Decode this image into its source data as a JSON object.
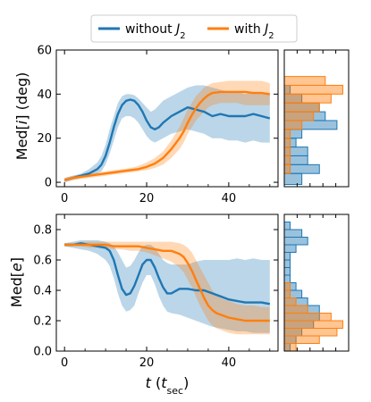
{
  "chart_data": [
    {
      "type": "line",
      "ylabel_parts": [
        "Med[",
        "i",
        "] (deg)"
      ],
      "xlim": [
        -2,
        52
      ],
      "ylim": [
        -2,
        60
      ],
      "xticks": [
        0,
        20,
        40
      ],
      "yticks": [
        0,
        20,
        40,
        60
      ],
      "series": [
        {
          "name": "without J2",
          "color": "#1f77b4",
          "x": [
            0,
            2,
            4,
            6,
            8,
            9,
            10,
            11,
            12,
            13,
            14,
            15,
            16,
            17,
            18,
            19,
            20,
            21,
            22,
            23,
            24,
            26,
            28,
            30,
            32,
            34,
            36,
            38,
            40,
            42,
            44,
            46,
            48,
            50
          ],
          "median": [
            1,
            2,
            3,
            4,
            6,
            8,
            12,
            18,
            25,
            31,
            35,
            37,
            37.5,
            37,
            35,
            32,
            28,
            25,
            24,
            25,
            27,
            30,
            32,
            34,
            33,
            32,
            30,
            31,
            30,
            30,
            30,
            31,
            30,
            29
          ],
          "lower": [
            0,
            1,
            2,
            3,
            4,
            5,
            8,
            13,
            19,
            25,
            29,
            30,
            30,
            29,
            27,
            24,
            21,
            19,
            18,
            19,
            20,
            22,
            23,
            24,
            23,
            22,
            20,
            20,
            19,
            19,
            18,
            19,
            18,
            18
          ],
          "upper": [
            2,
            3,
            4,
            6,
            9,
            12,
            17,
            24,
            30,
            36,
            39,
            40,
            40,
            39.5,
            38,
            36,
            34,
            32,
            33,
            35,
            37,
            39,
            41,
            43,
            44,
            44,
            43,
            42,
            41,
            41,
            40,
            41,
            40,
            40
          ]
        },
        {
          "name": "with J2",
          "color": "#ff7f0e",
          "x": [
            0,
            2,
            4,
            6,
            8,
            10,
            12,
            14,
            16,
            18,
            20,
            22,
            24,
            26,
            28,
            29,
            30,
            31,
            32,
            33,
            34,
            35,
            36,
            38,
            40,
            42,
            44,
            46,
            48,
            50
          ],
          "median": [
            1,
            2,
            2.5,
            3,
            3.5,
            4,
            4.5,
            5,
            5.5,
            6,
            7,
            8.5,
            11,
            15,
            20,
            23,
            27,
            30.5,
            33.5,
            36,
            38,
            39.5,
            40.5,
            41,
            41,
            41,
            41,
            40.5,
            40.5,
            40
          ],
          "lower": [
            0,
            1,
            1.5,
            2,
            2.5,
            3,
            3.5,
            4,
            4.5,
            5,
            5.5,
            6.5,
            8,
            11,
            15,
            18,
            22,
            25,
            28,
            30,
            32,
            34,
            35,
            36,
            36,
            36,
            35,
            35,
            35,
            35
          ],
          "upper": [
            2,
            3,
            3.5,
            4,
            4.5,
            5,
            5.5,
            6,
            6.5,
            7.5,
            9,
            11,
            14,
            19,
            25,
            29,
            33,
            36,
            39,
            41,
            43,
            44,
            45,
            45.5,
            46,
            46,
            46,
            46,
            46,
            45
          ]
        }
      ]
    },
    {
      "type": "line",
      "ylabel_parts": [
        "Med[",
        "e",
        "]"
      ],
      "xlim": [
        -2,
        52
      ],
      "ylim": [
        0,
        0.9
      ],
      "xticks": [
        0,
        20,
        40
      ],
      "yticks": [
        0.0,
        0.2,
        0.4,
        0.6,
        0.8
      ],
      "ytick_labels": [
        "0.0",
        "0.2",
        "0.4",
        "0.6",
        "0.8"
      ],
      "series": [
        {
          "name": "without J2",
          "color": "#1f77b4",
          "x": [
            0,
            2,
            4,
            6,
            8,
            10,
            11,
            12,
            13,
            14,
            15,
            16,
            17,
            18,
            19,
            20,
            21,
            22,
            23,
            24,
            25,
            26,
            28,
            30,
            32,
            34,
            36,
            38,
            40,
            42,
            44,
            46,
            48,
            50
          ],
          "median": [
            0.7,
            0.7,
            0.71,
            0.7,
            0.69,
            0.68,
            0.66,
            0.6,
            0.5,
            0.41,
            0.37,
            0.38,
            0.43,
            0.5,
            0.57,
            0.6,
            0.6,
            0.55,
            0.48,
            0.42,
            0.38,
            0.38,
            0.41,
            0.41,
            0.4,
            0.4,
            0.38,
            0.36,
            0.34,
            0.33,
            0.32,
            0.32,
            0.32,
            0.31
          ],
          "lower": [
            0.69,
            0.68,
            0.67,
            0.66,
            0.64,
            0.6,
            0.56,
            0.48,
            0.38,
            0.3,
            0.26,
            0.27,
            0.3,
            0.38,
            0.45,
            0.5,
            0.5,
            0.44,
            0.36,
            0.3,
            0.26,
            0.25,
            0.24,
            0.22,
            0.2,
            0.18,
            0.16,
            0.15,
            0.14,
            0.13,
            0.13,
            0.12,
            0.12,
            0.12
          ],
          "upper": [
            0.71,
            0.72,
            0.73,
            0.73,
            0.73,
            0.72,
            0.71,
            0.69,
            0.65,
            0.6,
            0.55,
            0.56,
            0.6,
            0.65,
            0.69,
            0.7,
            0.7,
            0.68,
            0.64,
            0.6,
            0.58,
            0.57,
            0.57,
            0.57,
            0.59,
            0.6,
            0.6,
            0.6,
            0.6,
            0.61,
            0.6,
            0.61,
            0.6,
            0.6
          ]
        },
        {
          "name": "with J2",
          "color": "#ff7f0e",
          "x": [
            0,
            2,
            4,
            6,
            8,
            10,
            12,
            14,
            16,
            18,
            20,
            22,
            24,
            26,
            28,
            29,
            30,
            31,
            32,
            33,
            34,
            35,
            36,
            37,
            38,
            40,
            42,
            44,
            46,
            48,
            50
          ],
          "median": [
            0.7,
            0.7,
            0.7,
            0.7,
            0.7,
            0.7,
            0.69,
            0.69,
            0.69,
            0.69,
            0.68,
            0.67,
            0.66,
            0.66,
            0.64,
            0.62,
            0.58,
            0.53,
            0.47,
            0.41,
            0.35,
            0.3,
            0.27,
            0.25,
            0.24,
            0.22,
            0.21,
            0.2,
            0.2,
            0.2,
            0.2
          ],
          "lower": [
            0.69,
            0.69,
            0.69,
            0.68,
            0.68,
            0.68,
            0.67,
            0.67,
            0.66,
            0.66,
            0.65,
            0.63,
            0.61,
            0.59,
            0.55,
            0.52,
            0.47,
            0.42,
            0.36,
            0.3,
            0.25,
            0.2,
            0.17,
            0.15,
            0.14,
            0.12,
            0.11,
            0.11,
            0.11,
            0.11,
            0.11
          ],
          "upper": [
            0.71,
            0.71,
            0.72,
            0.72,
            0.72,
            0.72,
            0.72,
            0.72,
            0.72,
            0.72,
            0.72,
            0.72,
            0.72,
            0.72,
            0.71,
            0.7,
            0.68,
            0.65,
            0.6,
            0.55,
            0.5,
            0.45,
            0.4,
            0.37,
            0.35,
            0.33,
            0.31,
            0.3,
            0.3,
            0.29,
            0.29
          ]
        }
      ]
    },
    {
      "type": "bar",
      "orientation": "horizontal",
      "ylim": [
        -2,
        60
      ],
      "bin_edges": [
        -1,
        4,
        8,
        12,
        16,
        20,
        24,
        28,
        32,
        36,
        40,
        44,
        48
      ],
      "series": [
        {
          "name": "without J2",
          "color": "#1f77b4",
          "values": [
            3,
            6,
            4,
            4,
            2,
            3,
            9,
            7,
            6,
            3,
            1,
            0
          ]
        },
        {
          "name": "with J2",
          "color": "#ff7f0e",
          "values": [
            0,
            1,
            1,
            1,
            1,
            1,
            3,
            5,
            6,
            8,
            10,
            7
          ]
        }
      ]
    },
    {
      "type": "bar",
      "orientation": "horizontal",
      "ylim": [
        0,
        0.9
      ],
      "bin_edges": [
        0.0,
        0.05,
        0.1,
        0.15,
        0.2,
        0.25,
        0.3,
        0.35,
        0.4,
        0.45,
        0.5,
        0.55,
        0.6,
        0.65,
        0.7,
        0.75,
        0.8,
        0.85
      ],
      "series": [
        {
          "name": "without J2",
          "color": "#1f77b4",
          "values": [
            1,
            2,
            3,
            5,
            6,
            6,
            4,
            3,
            2,
            1,
            1,
            1,
            1,
            2,
            4,
            3,
            1
          ]
        },
        {
          "name": "with J2",
          "color": "#ff7f0e",
          "values": [
            2,
            6,
            9,
            10,
            8,
            4,
            2,
            1,
            1,
            0,
            0,
            0,
            0,
            0,
            0,
            0,
            0
          ]
        }
      ]
    }
  ],
  "legend": {
    "placement": "top-center",
    "entries": [
      {
        "label": "without ",
        "italic": "J",
        "sub": "2",
        "color": "#1f77b4"
      },
      {
        "label": "with ",
        "italic": "J",
        "sub": "2",
        "color": "#ff7f0e"
      }
    ]
  },
  "xlabel_parts": {
    "var": "t",
    "open": " (",
    "svar": "t",
    "sub": "sec",
    "close": ")"
  }
}
